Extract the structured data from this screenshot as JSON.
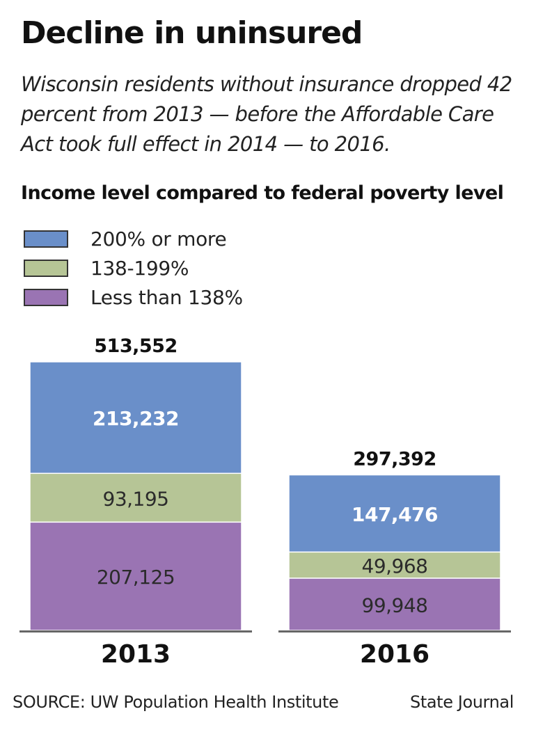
{
  "header": {
    "title": "Decline in uninsured",
    "subtitle": "Wisconsin residents without insurance dropped 42 percent from 2013 — before the Affordable Care Act took full effect in 2014 — to 2016.",
    "subhead": "Income level compared to federal poverty level"
  },
  "legend": {
    "items": [
      {
        "label": "200% or more",
        "color": "#6a8fc9"
      },
      {
        "label": "138-199%",
        "color": "#b6c596"
      },
      {
        "label": "Less than 138%",
        "color": "#9a74b3"
      }
    ]
  },
  "chart_data": {
    "type": "bar",
    "stacked": true,
    "categories": [
      "2013",
      "2016"
    ],
    "totals": [
      "513,552",
      "297,392"
    ],
    "series": [
      {
        "name": "Less than 138%",
        "values": [
          207125,
          99948
        ],
        "labels": [
          "207,125",
          "99,948"
        ],
        "color": "#9a74b3",
        "label_color": "#2b2b2b",
        "label_bold": false
      },
      {
        "name": "138-199%",
        "values": [
          93195,
          49968
        ],
        "labels": [
          "93,195",
          "49,968"
        ],
        "color": "#b6c596",
        "label_color": "#2b2b2b",
        "label_bold": false
      },
      {
        "name": "200% or more",
        "values": [
          213232,
          147476
        ],
        "labels": [
          "213,232",
          "147,476"
        ],
        "color": "#6a8fc9",
        "label_color": "#ffffff",
        "label_bold": true
      }
    ],
    "legend_position": "top-left",
    "grid": false
  },
  "footer": {
    "source": "SOURCE: UW Population Health Institute",
    "credit": "State Journal"
  }
}
